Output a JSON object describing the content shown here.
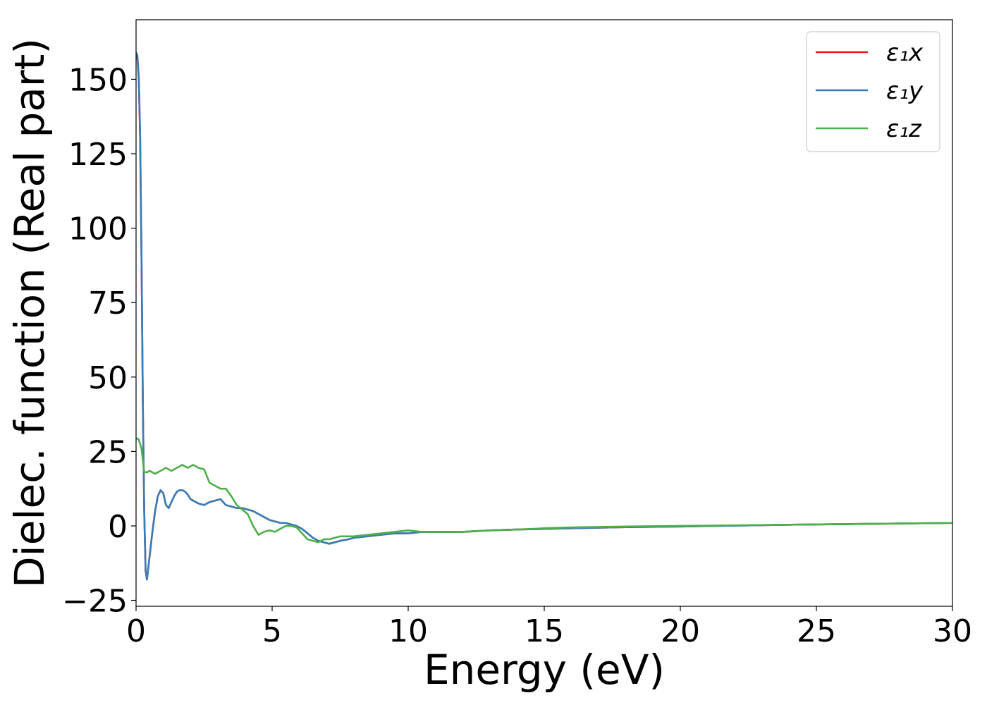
{
  "chart_data": {
    "type": "line",
    "title": "",
    "xlabel": "Energy (eV)",
    "ylabel": "Dielec. function (Real part)",
    "xlim": [
      0,
      30
    ],
    "ylim": [
      -27,
      170
    ],
    "xticks": [
      0,
      5,
      10,
      15,
      20,
      25,
      30
    ],
    "xtick_labels": [
      "0",
      "5",
      "10",
      "15",
      "20",
      "25",
      "30"
    ],
    "yticks": [
      -25,
      0,
      25,
      50,
      75,
      100,
      125,
      150
    ],
    "ytick_labels": [
      "−25",
      "0",
      "25",
      "50",
      "75",
      "100",
      "125",
      "150"
    ],
    "grid": false,
    "legend_position": "top-right",
    "series": [
      {
        "name": "ε₁x",
        "color": "#e41a1c",
        "x": [
          0,
          0.05,
          0.1,
          0.15,
          0.2,
          0.25,
          0.3,
          0.35,
          0.4,
          0.5,
          0.6,
          0.7,
          0.8,
          0.9,
          1.0,
          1.1,
          1.2,
          1.3,
          1.4,
          1.5,
          1.6,
          1.7,
          1.8,
          1.9,
          2.0,
          2.1,
          2.2,
          2.3,
          2.5,
          2.7,
          2.9,
          3.1,
          3.2,
          3.3,
          3.5,
          3.7,
          3.9,
          4.1,
          4.3,
          4.5,
          4.7,
          4.9,
          5.1,
          5.3,
          5.5,
          5.7,
          5.9,
          6.1,
          6.3,
          6.5,
          6.7,
          6.9,
          7.1,
          7.3,
          7.5,
          7.8,
          8.0,
          8.5,
          9.0,
          9.5,
          10.0,
          10.5,
          11.0,
          11.5,
          12.0,
          13.0,
          14.0,
          15.0,
          16.0,
          18.0,
          20.0,
          22.0,
          24.0,
          26.0,
          28.0,
          30.0
        ],
        "y": [
          158,
          157,
          150,
          130,
          90,
          40,
          5,
          -15,
          -18,
          -10,
          -2,
          5,
          10,
          12,
          11,
          7,
          6,
          8,
          10,
          11.5,
          12,
          12,
          11.5,
          10.5,
          9,
          8.5,
          8,
          7.5,
          7,
          8,
          8.5,
          9,
          8,
          7,
          6.5,
          6,
          6,
          5.5,
          5,
          4,
          3,
          2,
          1.5,
          1,
          1,
          0.5,
          0,
          -1,
          -2.5,
          -4,
          -5,
          -5.5,
          -6,
          -5.5,
          -5,
          -4.5,
          -4,
          -3.5,
          -3,
          -2.5,
          -2.5,
          -2,
          -2,
          -2,
          -2,
          -1.5,
          -1.2,
          -1,
          -0.8,
          -0.4,
          -0.2,
          0.1,
          0.4,
          0.6,
          0.8,
          1
        ]
      },
      {
        "name": "ε₁y",
        "color": "#377eb8",
        "x": [
          0,
          0.05,
          0.1,
          0.15,
          0.2,
          0.25,
          0.3,
          0.35,
          0.4,
          0.5,
          0.6,
          0.7,
          0.8,
          0.9,
          1.0,
          1.1,
          1.2,
          1.3,
          1.4,
          1.5,
          1.6,
          1.7,
          1.8,
          1.9,
          2.0,
          2.1,
          2.2,
          2.3,
          2.5,
          2.7,
          2.9,
          3.1,
          3.2,
          3.3,
          3.5,
          3.7,
          3.9,
          4.1,
          4.3,
          4.5,
          4.7,
          4.9,
          5.1,
          5.3,
          5.5,
          5.7,
          5.9,
          6.1,
          6.3,
          6.5,
          6.7,
          6.9,
          7.1,
          7.3,
          7.5,
          7.8,
          8.0,
          8.5,
          9.0,
          9.5,
          10.0,
          10.5,
          11.0,
          11.5,
          12.0,
          13.0,
          14.0,
          15.0,
          16.0,
          18.0,
          20.0,
          22.0,
          24.0,
          26.0,
          28.0,
          30.0
        ],
        "y": [
          159,
          158,
          151,
          131,
          91,
          41,
          5,
          -15,
          -18,
          -10,
          -2,
          5,
          10,
          12,
          11,
          7,
          6,
          8,
          10,
          11.5,
          12,
          12,
          11.5,
          10.5,
          9,
          8.5,
          8,
          7.5,
          7,
          8,
          8.5,
          9,
          8,
          7,
          6.5,
          6,
          6,
          5.5,
          5,
          4,
          3,
          2,
          1.5,
          1,
          1,
          0.5,
          0,
          -1,
          -2.5,
          -4,
          -5,
          -5.5,
          -6,
          -5.5,
          -5,
          -4.5,
          -4,
          -3.5,
          -3,
          -2.5,
          -2.5,
          -2,
          -2,
          -2,
          -2,
          -1.5,
          -1.2,
          -1,
          -0.8,
          -0.4,
          -0.2,
          0.1,
          0.4,
          0.6,
          0.8,
          1
        ]
      },
      {
        "name": "ε₁z",
        "color": "#4daf4a",
        "x": [
          0,
          0.1,
          0.2,
          0.3,
          0.4,
          0.5,
          0.6,
          0.7,
          0.8,
          0.9,
          1.0,
          1.1,
          1.2,
          1.3,
          1.4,
          1.5,
          1.6,
          1.7,
          1.8,
          1.9,
          2.0,
          2.1,
          2.2,
          2.3,
          2.5,
          2.7,
          2.9,
          3.1,
          3.3,
          3.5,
          3.7,
          3.9,
          4.1,
          4.3,
          4.5,
          4.7,
          4.9,
          5.1,
          5.3,
          5.5,
          5.7,
          5.9,
          6.1,
          6.3,
          6.5,
          6.7,
          6.9,
          7.1,
          7.3,
          7.5,
          7.8,
          8.0,
          8.5,
          9.0,
          9.5,
          10.0,
          10.5,
          11.0,
          11.5,
          12.0,
          13.0,
          14.0,
          15.0,
          16.0,
          18.0,
          20.0,
          22.0,
          24.0,
          26.0,
          28.0,
          30.0
        ],
        "y": [
          29.5,
          29,
          26,
          18,
          18,
          18.5,
          18,
          17.5,
          18,
          18.5,
          19,
          19.5,
          19,
          18.5,
          19,
          19.5,
          20,
          20.5,
          20,
          19.5,
          20,
          20.5,
          20,
          19.5,
          19,
          14.5,
          13.5,
          12.5,
          12.5,
          10,
          7,
          5.5,
          4,
          0,
          -3,
          -2,
          -1.5,
          -2,
          -1,
          0,
          0,
          -0.5,
          -2.5,
          -4.5,
          -5,
          -5.5,
          -4.5,
          -4.5,
          -4,
          -3.5,
          -3.5,
          -3.5,
          -3,
          -2.5,
          -2,
          -1.5,
          -2,
          -2,
          -2,
          -2,
          -1.5,
          -1.2,
          -0.8,
          -0.5,
          -0.2,
          0,
          0.2,
          0.4,
          0.6,
          0.8,
          1
        ]
      }
    ]
  }
}
